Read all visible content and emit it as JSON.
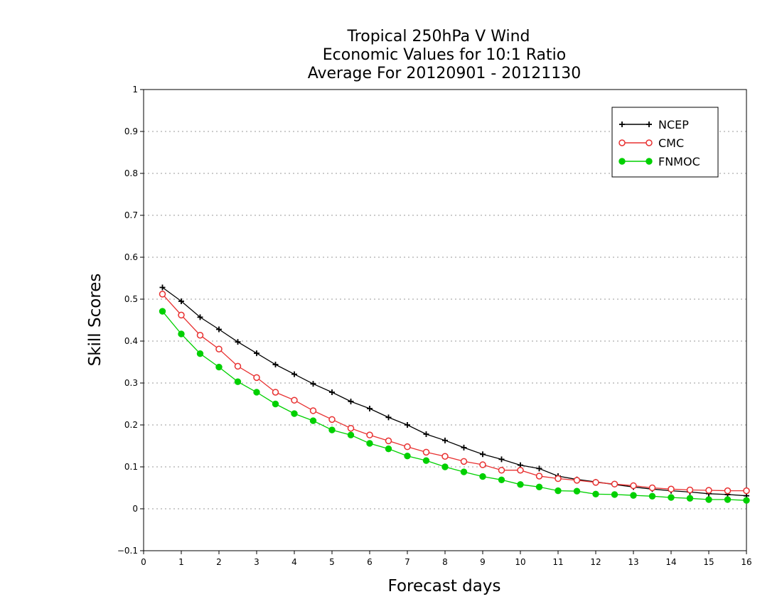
{
  "chart_data": {
    "type": "line",
    "title": [
      "Tropical 250hPa V Wind",
      "Economic Values for 10:1 Ratio",
      "Average For 20120901 - 20121130"
    ],
    "xlabel": "Forecast days",
    "ylabel": "Skill Scores",
    "xlim": [
      0,
      16
    ],
    "ylim": [
      -0.1,
      1
    ],
    "xticks": [
      0,
      1,
      2,
      3,
      4,
      5,
      6,
      7,
      8,
      9,
      10,
      11,
      12,
      13,
      14,
      15,
      16
    ],
    "yticks": [
      -0.1,
      0,
      0.1,
      0.2,
      0.3,
      0.4,
      0.5,
      0.6,
      0.7,
      0.8,
      0.9,
      1
    ],
    "ytick_labels": [
      "−0.1",
      "0",
      "0.1",
      "0.2",
      "0.3",
      "0.4",
      "0.5",
      "0.6",
      "0.7",
      "0.8",
      "0.9",
      "1"
    ],
    "grid": "horizontal dotted",
    "legend_position": "top-right",
    "x": [
      0.5,
      1,
      1.5,
      2,
      2.5,
      3,
      3.5,
      4,
      4.5,
      5,
      5.5,
      6,
      6.5,
      7,
      7.5,
      8,
      8.5,
      9,
      9.5,
      10,
      10.5,
      11,
      11.5,
      12,
      12.5,
      13,
      13.5,
      14,
      14.5,
      15,
      15.5,
      16
    ],
    "series": [
      {
        "name": "NCEP",
        "color": "#000000",
        "marker": "plus",
        "values": [
          0.528,
          0.495,
          0.457,
          0.428,
          0.398,
          0.371,
          0.344,
          0.321,
          0.298,
          0.278,
          0.256,
          0.239,
          0.218,
          0.2,
          0.178,
          0.163,
          0.146,
          0.13,
          0.118,
          0.104,
          0.096,
          0.078,
          0.07,
          0.064,
          0.058,
          0.052,
          0.047,
          0.043,
          0.04,
          0.036,
          0.034,
          0.031
        ]
      },
      {
        "name": "CMC",
        "color": "#e83030",
        "marker": "open-circle",
        "values": [
          0.512,
          0.462,
          0.414,
          0.381,
          0.34,
          0.313,
          0.278,
          0.259,
          0.234,
          0.213,
          0.192,
          0.176,
          0.162,
          0.148,
          0.135,
          0.125,
          0.113,
          0.105,
          0.092,
          0.092,
          0.078,
          0.072,
          0.068,
          0.063,
          0.059,
          0.055,
          0.05,
          0.047,
          0.045,
          0.044,
          0.043,
          0.043
        ]
      },
      {
        "name": "FNMOC",
        "color": "#00d000",
        "marker": "filled-circle",
        "values": [
          0.471,
          0.417,
          0.37,
          0.338,
          0.303,
          0.278,
          0.25,
          0.227,
          0.21,
          0.188,
          0.176,
          0.156,
          0.143,
          0.126,
          0.115,
          0.1,
          0.088,
          0.077,
          0.069,
          0.058,
          0.052,
          0.043,
          0.042,
          0.035,
          0.034,
          0.032,
          0.03,
          0.027,
          0.025,
          0.022,
          0.022,
          0.02
        ]
      }
    ]
  }
}
